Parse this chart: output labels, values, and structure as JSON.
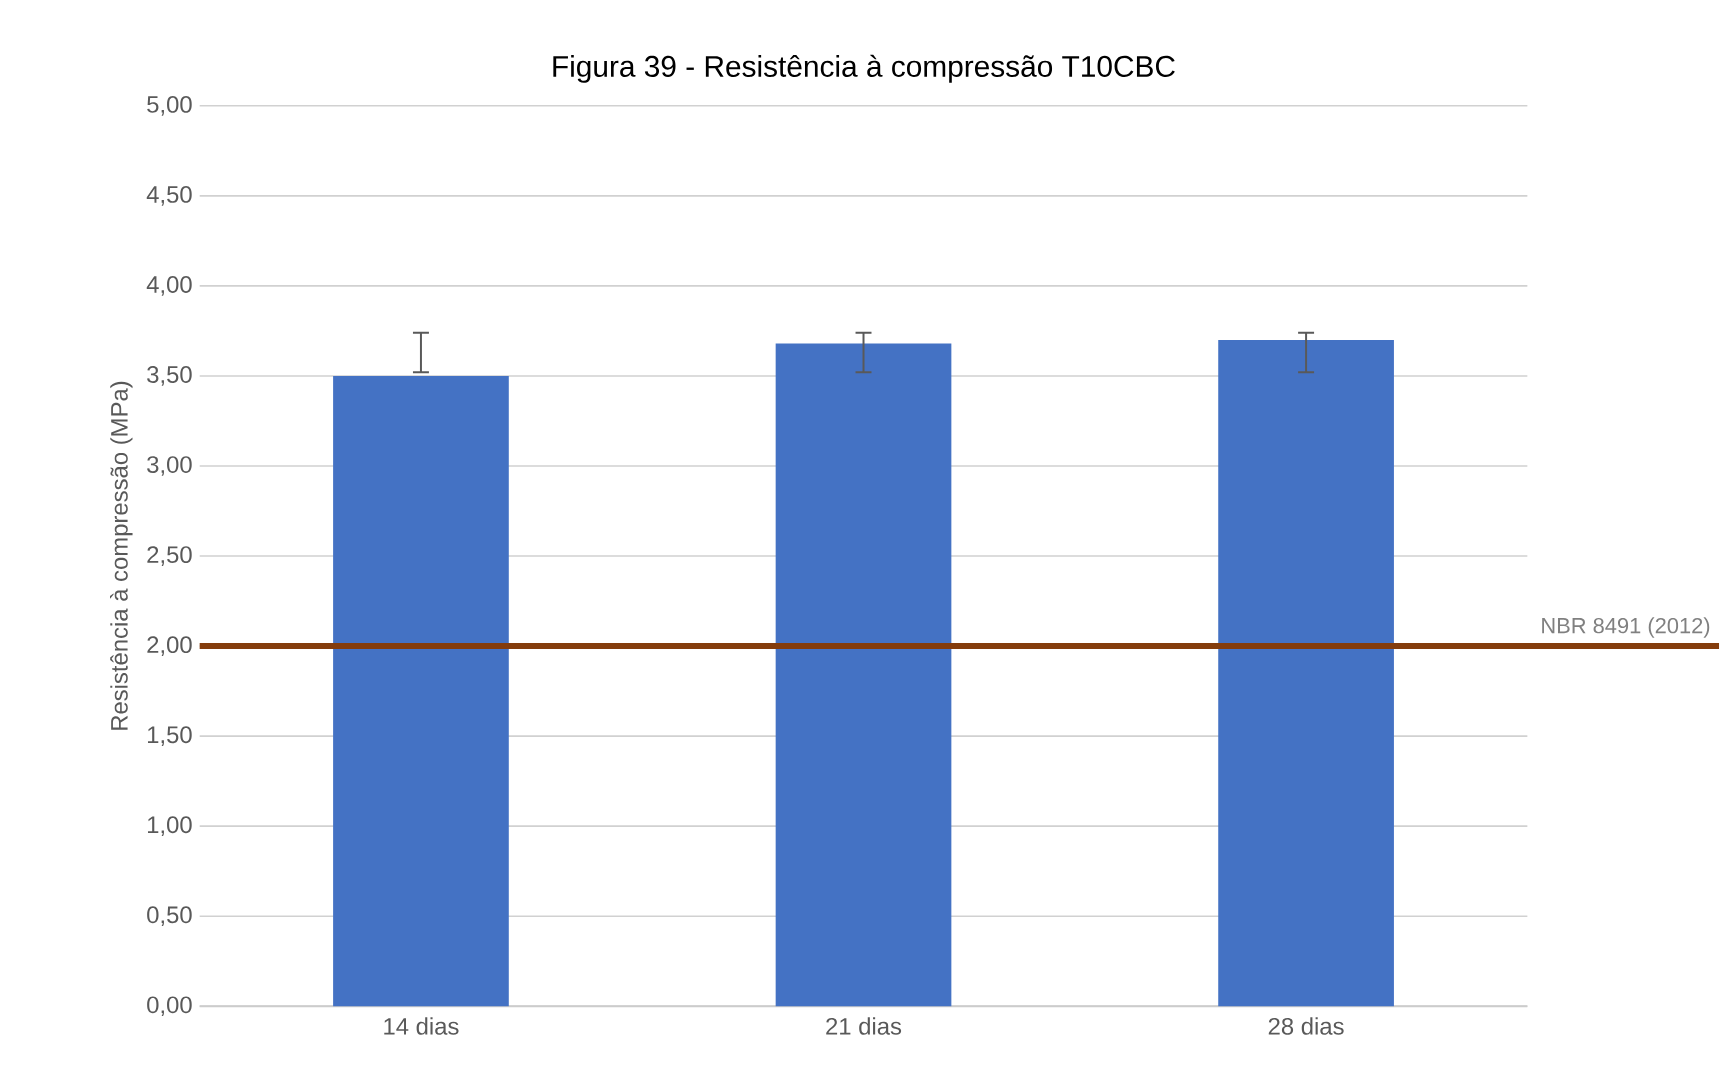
{
  "chart_data": {
    "type": "bar",
    "title": "Figura 39 - Resistência à compressão T10CBC",
    "ylabel": "Resistência à compressão (MPa)",
    "categories": [
      "14 dias",
      "21 dias",
      "28 dias"
    ],
    "values": [
      3.5,
      3.68,
      3.7
    ],
    "color": "#4472c4",
    "errors": [
      [
        3.52,
        3.74
      ],
      [
        3.52,
        3.74
      ],
      [
        3.52,
        3.74
      ]
    ],
    "ylim": [
      0,
      5
    ],
    "yticks": [
      {
        "value": 0,
        "label": "0,00"
      },
      {
        "value": 0.5,
        "label": "0,50"
      },
      {
        "value": 1,
        "label": "1,00"
      },
      {
        "value": 1.5,
        "label": "1,50"
      },
      {
        "value": 2,
        "label": "2,00"
      },
      {
        "value": 2.5,
        "label": "2,50"
      },
      {
        "value": 3,
        "label": "3,00"
      },
      {
        "value": 3.5,
        "label": "3,50"
      },
      {
        "value": 4,
        "label": "4,00"
      },
      {
        "value": 4.5,
        "label": "4,50"
      },
      {
        "value": 5,
        "label": "5,00"
      }
    ],
    "ref_lines": [
      {
        "axis": "y",
        "value": 2,
        "label": "NBR 8491 (2012)",
        "color": "#843c0c"
      }
    ],
    "grid": "y"
  }
}
